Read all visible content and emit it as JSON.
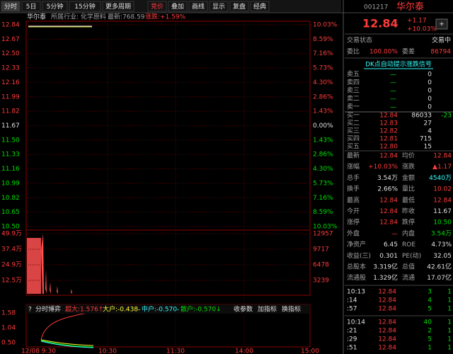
{
  "toolbar": [
    "分时",
    "5日",
    "5分钟",
    "15分钟",
    "更多周期",
    "竞价",
    "叠加",
    "画线",
    "显示",
    "复盘",
    "经典"
  ],
  "chart_header": {
    "name": "华尔泰",
    "industry": "所属行业: 化学原料",
    "latest": "最新:768.59",
    "change": "涨跌:+1.59%"
  },
  "price_axis": {
    "left": [
      "12.84",
      "12.67",
      "12.50",
      "12.33",
      "12.16",
      "11.99",
      "11.82",
      "11.67",
      "11.50",
      "11.33",
      "11.16",
      "10.99",
      "10.82",
      "10.65",
      "10.50"
    ],
    "right": [
      "10.03%",
      "8.59%",
      "7.16%",
      "5.73%",
      "4.30%",
      "2.86%",
      "1.43%",
      "0.00%",
      "1.43%",
      "2.86%",
      "4.30%",
      "5.73%",
      "7.16%",
      "8.59%",
      "10.03%"
    ]
  },
  "volume_axis": {
    "left": [
      "49.9万",
      "37.4万",
      "24.9万",
      "12.5万"
    ],
    "right": [
      "12957",
      "9717",
      "6478",
      "3239"
    ]
  },
  "indicator": {
    "help": "?",
    "name": "分时博弈",
    "items": [
      "超大:1.576↑",
      "大户:-0.438-",
      "中户:-0.570-",
      "散户:-0.570↓"
    ],
    "buttons": [
      "收参数",
      "加指标",
      "换指标"
    ],
    "axis": [
      "1.58",
      "1.04",
      "0.50"
    ]
  },
  "time_axis": [
    "12/08 9:30",
    "10:30",
    "11:30",
    "14:00",
    "15:00"
  ],
  "quote": {
    "code": "001217",
    "name": "华尔泰",
    "price": "12.84",
    "change": "+1.17",
    "change_pct": "+10.03%",
    "button": "+",
    "status_label": "交易状态",
    "status": "交易中",
    "ratio_label": "委比",
    "ratio": "100.00%",
    "diff_label": "委差",
    "diff": "86794",
    "signal": "DK点自动提示涨跌信号",
    "asks": [
      {
        "label": "卖五",
        "price": "—",
        "volume": "0"
      },
      {
        "label": "卖四",
        "price": "—",
        "volume": "0"
      },
      {
        "label": "卖三",
        "price": "—",
        "volume": "0"
      },
      {
        "label": "卖二",
        "price": "—",
        "volume": "0"
      },
      {
        "label": "卖一",
        "price": "—",
        "volume": "0"
      }
    ],
    "bids": [
      {
        "label": "买一",
        "price": "12.84",
        "volume": "86033",
        "change": "-23"
      },
      {
        "label": "买二",
        "price": "12.83",
        "volume": "27"
      },
      {
        "label": "买三",
        "price": "12.82",
        "volume": "4"
      },
      {
        "label": "买四",
        "price": "12.81",
        "volume": "715"
      },
      {
        "label": "买五",
        "price": "12.80",
        "volume": "15"
      }
    ],
    "stats": [
      [
        "最新",
        "12.84",
        "均价",
        "12.84"
      ],
      [
        "涨幅",
        "+10.03%",
        "涨跌",
        "▲1.17"
      ],
      [
        "总手",
        "3.54万",
        "金额",
        "4540万"
      ],
      [
        "换手",
        "2.66%",
        "量比",
        "10.02"
      ],
      [
        "最高",
        "12.84",
        "最低",
        "12.84"
      ],
      [
        "今开",
        "12.84",
        "昨收",
        "11.67"
      ],
      [
        "涨停",
        "12.84",
        "跌停",
        "10.50"
      ],
      [
        "外盘",
        "—",
        "内盘",
        "3.54万"
      ],
      [
        "净资产",
        "6.45",
        "ROE",
        "4.73%"
      ],
      [
        "收益(三)",
        "0.301",
        "PE(动)",
        "32.05"
      ],
      [
        "总股本",
        "3.319亿",
        "总值",
        "42.61亿"
      ],
      [
        "流通股",
        "1.329亿",
        "流通",
        "17.07亿"
      ]
    ],
    "ticks": [
      [
        "10:13",
        "12.84",
        "3",
        "1"
      ],
      [
        ":14",
        "12.84",
        "4",
        "1"
      ],
      [
        ":57",
        "12.84",
        "5",
        "1"
      ],
      [
        "10:14",
        "12.84",
        "40",
        "1"
      ],
      [
        ":21",
        "12.84",
        "2",
        "1"
      ],
      [
        ":29",
        "12.84",
        "5",
        "1"
      ],
      [
        ":51",
        "12.84",
        "1",
        "1"
      ]
    ]
  }
}
